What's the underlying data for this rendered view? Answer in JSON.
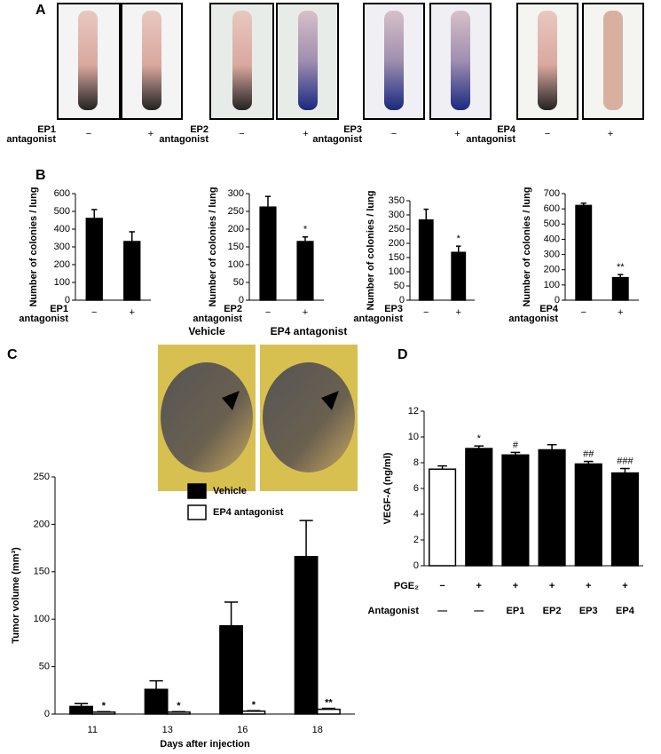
{
  "panels": {
    "a": "A",
    "b": "B",
    "c": "C",
    "d": "D"
  },
  "bones": [
    {
      "label": [
        "EP1",
        "antagonist"
      ],
      "categories": [
        "−",
        "+"
      ]
    },
    {
      "label": [
        "EP2",
        "antagonist"
      ],
      "categories": [
        "−",
        "+"
      ]
    },
    {
      "label": [
        "EP3",
        "antagonist"
      ],
      "categories": [
        "−",
        "+"
      ]
    },
    {
      "label": [
        "EP4",
        "antagonist"
      ],
      "categories": [
        "−",
        "+"
      ]
    }
  ],
  "panel_c_photos": [
    "Vehicle",
    "EP4 antagonist"
  ],
  "chart_data": [
    {
      "type": "bar",
      "ylabel": "Number of colonies / lung",
      "xlabel": [
        "EP1",
        "antagonist"
      ],
      "categories": [
        "−",
        "+"
      ],
      "values": [
        460,
        330
      ],
      "errors": [
        50,
        55
      ],
      "annotations": [
        null,
        null
      ],
      "color": "#000000",
      "ylim": [
        0,
        600
      ],
      "yticks": [
        0,
        100,
        200,
        300,
        400,
        500,
        600
      ]
    },
    {
      "type": "bar",
      "ylabel": "Number of colonies / lung",
      "xlabel": [
        "EP2",
        "antagonist"
      ],
      "categories": [
        "−",
        "+"
      ],
      "values": [
        262,
        165
      ],
      "errors": [
        30,
        13
      ],
      "annotations": [
        null,
        "*"
      ],
      "color": "#000000",
      "ylim": [
        0,
        300
      ],
      "yticks": [
        0,
        50,
        100,
        150,
        200,
        250,
        300
      ]
    },
    {
      "type": "bar",
      "ylabel": "Number of colonies / lung",
      "xlabel": [
        "EP3",
        "antagonist"
      ],
      "categories": [
        "−",
        "+"
      ],
      "values": [
        282,
        168
      ],
      "errors": [
        38,
        22
      ],
      "annotations": [
        null,
        "*"
      ],
      "color": "#000000",
      "ylim": [
        0,
        350
      ],
      "yticks": [
        0,
        50,
        100,
        150,
        200,
        250,
        300,
        350
      ]
    },
    {
      "type": "bar",
      "ylabel": "Number of colonies / lung",
      "xlabel": [
        "EP4",
        "antagonist"
      ],
      "categories": [
        "−",
        "+"
      ],
      "values": [
        622,
        148
      ],
      "errors": [
        15,
        20
      ],
      "annotations": [
        null,
        "**"
      ],
      "color": "#000000",
      "ylim": [
        0,
        700
      ],
      "yticks": [
        0,
        100,
        200,
        300,
        400,
        500,
        600,
        700
      ]
    },
    {
      "type": "grouped_bar",
      "ylabel": "Tumor volume (mm³)",
      "xlabel": [
        "Days after injection"
      ],
      "categories": [
        "11",
        "13",
        "16",
        "18"
      ],
      "series": [
        {
          "name": "Vehicle",
          "color": "#000000",
          "values": [
            8,
            26,
            93,
            166
          ],
          "errors": [
            3,
            9,
            25,
            38
          ]
        },
        {
          "name": "EP4 antagonist",
          "color": "#ffffff",
          "values": [
            2,
            2,
            3,
            5
          ],
          "errors": [
            0.5,
            0.5,
            0.5,
            1
          ]
        }
      ],
      "annotations": [
        "*",
        "*",
        "*",
        "**"
      ],
      "legend": "upper left",
      "ylim": [
        0,
        250
      ],
      "yticks": [
        0,
        50,
        100,
        150,
        200,
        250
      ]
    },
    {
      "type": "bar",
      "ylabel": "VEGF-A (ng/ml)",
      "values": [
        7.5,
        9.1,
        8.6,
        9.0,
        7.9,
        7.2
      ],
      "errors": [
        0.25,
        0.2,
        0.2,
        0.4,
        0.2,
        0.35
      ],
      "annotations": [
        null,
        "*",
        "#",
        null,
        "##",
        "###"
      ],
      "colors": [
        "#ffffff",
        "#000000",
        "#000000",
        "#000000",
        "#000000",
        "#000000"
      ],
      "rows": [
        {
          "label": "PGE₂",
          "values": [
            "−",
            "+",
            "+",
            "+",
            "+",
            "+"
          ]
        },
        {
          "label": "Antagonist",
          "values": [
            "—",
            "—",
            "EP1",
            "EP2",
            "EP3",
            "EP4"
          ]
        }
      ],
      "ylim": [
        0,
        12
      ],
      "yticks": [
        0,
        2,
        4,
        6,
        8,
        10,
        12
      ]
    }
  ]
}
